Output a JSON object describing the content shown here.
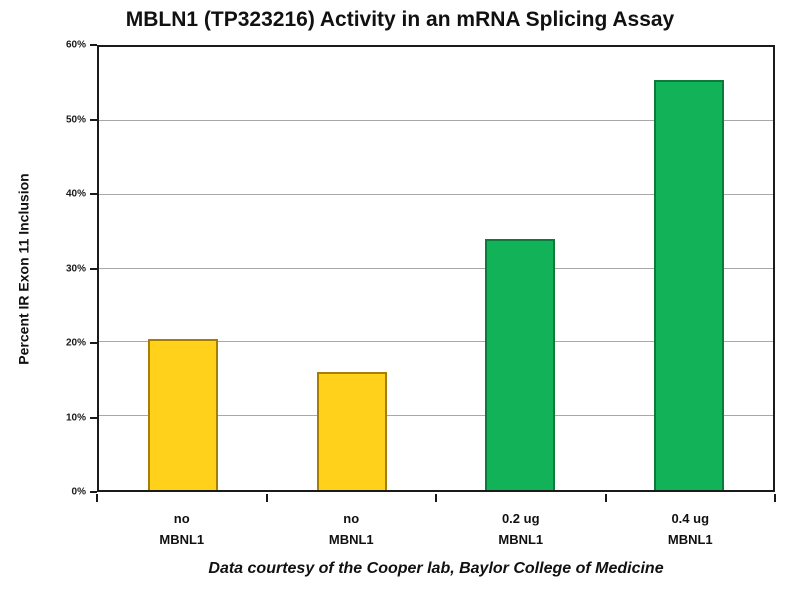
{
  "page": {
    "background": "#ffffff"
  },
  "chart_data": {
    "type": "bar",
    "title": "MBLN1 (TP323216) Activity in an mRNA Splicing Assay",
    "ylabel": "Percent IR Exon 11 Inclusion",
    "xlabel": "",
    "caption": "Data courtesy of the Cooper lab, Baylor College of Medicine",
    "categories": [
      "no\nMBNL1",
      "no\nMBNL1",
      "0.2 ug\nMBNL1",
      "0.4 ug\nMBNL1"
    ],
    "values": [
      20.5,
      16,
      34,
      55.5
    ],
    "ylim": [
      0,
      60
    ],
    "ytick_step": 10,
    "ytick_labels": [
      "0%",
      "10%",
      "20%",
      "30%",
      "40%",
      "50%",
      "60%"
    ],
    "grid": true,
    "legend": "none",
    "colors": {
      "bar_fills": [
        "#FFD11A",
        "#FFD11A",
        "#12B259",
        "#12B259"
      ],
      "bar_borders": [
        "#A67F00",
        "#A67F00",
        "#0B7A3C",
        "#0B7A3C"
      ],
      "gridline": "#a8a8a8",
      "axis": "#1a1a1a",
      "text": "#111111"
    }
  }
}
